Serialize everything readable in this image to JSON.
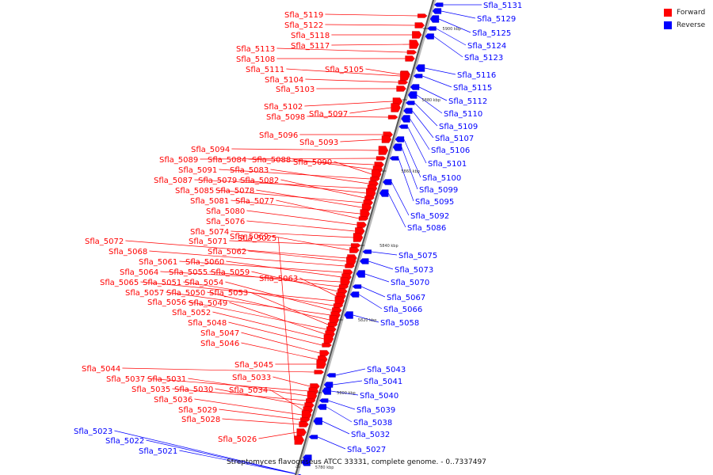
{
  "legend": {
    "forward_label": "Forward",
    "reverse_label": "Reverse",
    "forward_color": "#ff0000",
    "reverse_color": "#0000ff"
  },
  "caption": "Streptomyces flavogriseus ATCC 33331, complete genome. - 0..7337497",
  "axis_ticks": [
    "5900 kbp",
    "5880 kbp",
    "5860 kbp",
    "5840 kbp",
    "5820 kbp",
    "5800 kbp",
    "5780 kbp"
  ],
  "forward_genes": [
    "Sfla_5119",
    "Sfla_5122",
    "Sfla_5118",
    "Sfla_5117",
    "Sfla_5113",
    "Sfla_5108",
    "Sfla_5105",
    "Sfla_5111",
    "Sfla_5104",
    "Sfla_5103",
    "Sfla_5102",
    "Sfla_5097",
    "Sfla_5098",
    "Sfla_5096",
    "Sfla_5093",
    "Sfla_5094",
    "Sfla_5089",
    "Sfla_5084",
    "Sfla_5088",
    "Sfla_5090",
    "Sfla_5091",
    "Sfla_5083",
    "Sfla_5087",
    "Sfla_5079",
    "Sfla_5082",
    "Sfla_5085",
    "Sfla_5078",
    "Sfla_5081",
    "Sfla_5077",
    "Sfla_5080",
    "Sfla_5076",
    "Sfla_5074",
    "Sfla_5071",
    "Sfla_5069",
    "Sfla_5072",
    "Sfla_5062",
    "Sfla_5068",
    "Sfla_5061",
    "Sfla_5060",
    "Sfla_5064",
    "Sfla_5055",
    "Sfla_5059",
    "Sfla_5063",
    "Sfla_5065",
    "Sfla_5051",
    "Sfla_5054",
    "Sfla_5057",
    "Sfla_5050",
    "Sfla_5053",
    "Sfla_5056",
    "Sfla_5049",
    "Sfla_5052",
    "Sfla_5048",
    "Sfla_5047",
    "Sfla_5046",
    "Sfla_5045",
    "Sfla_5044",
    "Sfla_5033",
    "Sfla_5037",
    "Sfla_5031",
    "Sfla_5035",
    "Sfla_5030",
    "Sfla_5034",
    "Sfla_5036",
    "Sfla_5029",
    "Sfla_5028",
    "Sfla_5026",
    "Sfla_5025"
  ],
  "reverse_genes": [
    "Sfla_5131",
    "Sfla_5129",
    "Sfla_5125",
    "Sfla_5124",
    "Sfla_5123",
    "Sfla_5116",
    "Sfla_5115",
    "Sfla_5112",
    "Sfla_5110",
    "Sfla_5109",
    "Sfla_5107",
    "Sfla_5106",
    "Sfla_5101",
    "Sfla_5100",
    "Sfla_5099",
    "Sfla_5095",
    "Sfla_5092",
    "Sfla_5086",
    "Sfla_5075",
    "Sfla_5073",
    "Sfla_5070",
    "Sfla_5067",
    "Sfla_5066",
    "Sfla_5058",
    "Sfla_5043",
    "Sfla_5041",
    "Sfla_5040",
    "Sfla_5039",
    "Sfla_5038",
    "Sfla_5032",
    "Sfla_5027",
    "Sfla_5023",
    "Sfla_5022",
    "Sfla_5021"
  ]
}
